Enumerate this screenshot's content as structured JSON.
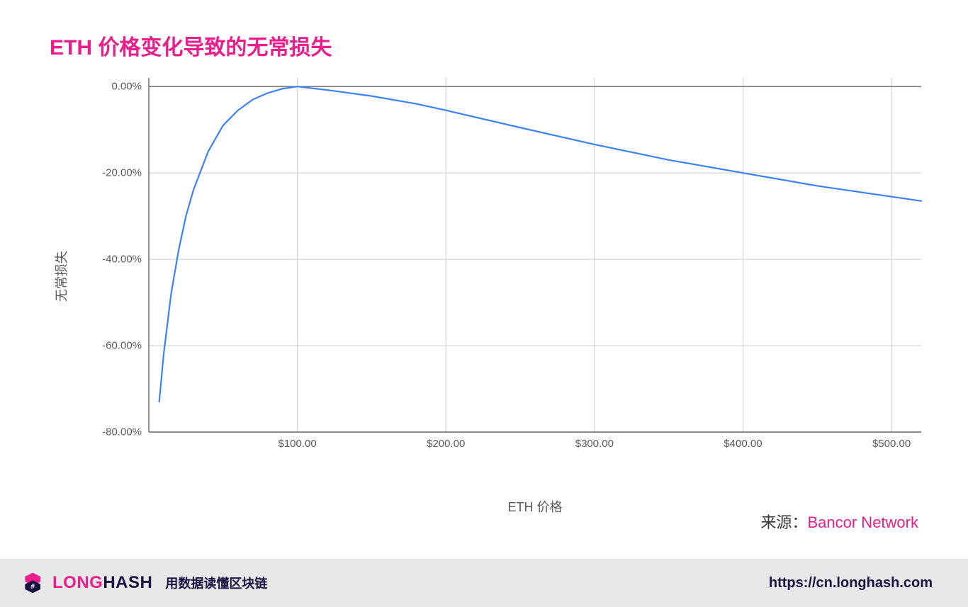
{
  "title": "ETH 价格变化导致的无常损失",
  "chart": {
    "type": "line",
    "ylabel": "无常损失",
    "xlabel": "ETH 价格",
    "line_color": "#3b82f6",
    "line_width": 2.2,
    "grid_color": "#cccccc",
    "axis_color": "#666666",
    "background_color": "#ffffff",
    "tick_font_size": 15,
    "label_font_size": 18,
    "xlim": [
      0,
      520
    ],
    "ylim": [
      -80,
      2
    ],
    "xticks": [
      {
        "v": 100,
        "label": "$100.00"
      },
      {
        "v": 200,
        "label": "$200.00"
      },
      {
        "v": 300,
        "label": "$300.00"
      },
      {
        "v": 400,
        "label": "$400.00"
      },
      {
        "v": 500,
        "label": "$500.00"
      }
    ],
    "yticks": [
      {
        "v": 0,
        "label": "0.00%"
      },
      {
        "v": -20,
        "label": "-20.00%"
      },
      {
        "v": -40,
        "label": "-40.00%"
      },
      {
        "v": -60,
        "label": "-60.00%"
      },
      {
        "v": -80,
        "label": "-80.00%"
      }
    ],
    "series": [
      {
        "x": 7,
        "y": -73
      },
      {
        "x": 10,
        "y": -62
      },
      {
        "x": 15,
        "y": -48
      },
      {
        "x": 20,
        "y": -38
      },
      {
        "x": 25,
        "y": -30
      },
      {
        "x": 30,
        "y": -24
      },
      {
        "x": 40,
        "y": -15
      },
      {
        "x": 50,
        "y": -9
      },
      {
        "x": 60,
        "y": -5.5
      },
      {
        "x": 70,
        "y": -3
      },
      {
        "x": 80,
        "y": -1.5
      },
      {
        "x": 90,
        "y": -0.5
      },
      {
        "x": 100,
        "y": 0
      },
      {
        "x": 120,
        "y": -0.8
      },
      {
        "x": 150,
        "y": -2.2
      },
      {
        "x": 180,
        "y": -4.0
      },
      {
        "x": 200,
        "y": -5.5
      },
      {
        "x": 250,
        "y": -9.5
      },
      {
        "x": 300,
        "y": -13.4
      },
      {
        "x": 350,
        "y": -17.0
      },
      {
        "x": 400,
        "y": -20.0
      },
      {
        "x": 450,
        "y": -23.0
      },
      {
        "x": 500,
        "y": -25.5
      },
      {
        "x": 520,
        "y": -26.5
      }
    ]
  },
  "source": {
    "label": "来源：",
    "value": "Bancor Network"
  },
  "footer": {
    "logo_long": "LONG",
    "logo_hash": "HASH",
    "tagline": "用数据读懂区块链",
    "url": "https://cn.longhash.com",
    "logo_colors": {
      "top": "#e91e8c",
      "bottom": "#1a1240"
    }
  }
}
